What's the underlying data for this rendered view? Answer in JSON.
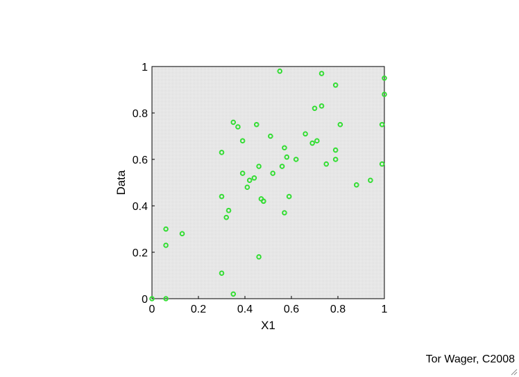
{
  "credit": "Tor Wager, C2008",
  "chart_data": {
    "type": "scatter",
    "title": "",
    "xlabel": "X1",
    "ylabel": "Data",
    "xlim": [
      0,
      1
    ],
    "ylim": [
      0,
      1
    ],
    "xticks": [
      "0",
      "0.2",
      "0.4",
      "0.6",
      "0.8",
      "1"
    ],
    "yticks": [
      "0",
      "0.2",
      "0.4",
      "0.6",
      "0.8",
      "1"
    ],
    "grid": false,
    "background": "#e8e8e8",
    "marker": "circle",
    "marker_color": "#33dd33",
    "series": [
      {
        "points": [
          [
            0.0,
            0.0
          ],
          [
            0.06,
            0.0
          ],
          [
            0.06,
            0.3
          ],
          [
            0.06,
            0.23
          ],
          [
            0.13,
            0.28
          ],
          [
            0.3,
            0.11
          ],
          [
            0.3,
            0.44
          ],
          [
            0.3,
            0.63
          ],
          [
            0.32,
            0.35
          ],
          [
            0.33,
            0.38
          ],
          [
            0.35,
            0.02
          ],
          [
            0.35,
            0.76
          ],
          [
            0.37,
            0.74
          ],
          [
            0.39,
            0.54
          ],
          [
            0.39,
            0.68
          ],
          [
            0.41,
            0.48
          ],
          [
            0.42,
            0.51
          ],
          [
            0.44,
            0.52
          ],
          [
            0.45,
            0.75
          ],
          [
            0.46,
            0.18
          ],
          [
            0.46,
            0.57
          ],
          [
            0.47,
            0.43
          ],
          [
            0.48,
            0.42
          ],
          [
            0.48,
            0.42
          ],
          [
            0.51,
            0.7
          ],
          [
            0.52,
            0.54
          ],
          [
            0.55,
            0.98
          ],
          [
            0.56,
            0.57
          ],
          [
            0.57,
            0.37
          ],
          [
            0.57,
            0.65
          ],
          [
            0.58,
            0.61
          ],
          [
            0.59,
            0.44
          ],
          [
            0.62,
            0.6
          ],
          [
            0.66,
            0.71
          ],
          [
            0.69,
            0.67
          ],
          [
            0.7,
            0.82
          ],
          [
            0.71,
            0.68
          ],
          [
            0.73,
            0.83
          ],
          [
            0.73,
            0.97
          ],
          [
            0.75,
            0.58
          ],
          [
            0.79,
            0.6
          ],
          [
            0.79,
            0.64
          ],
          [
            0.79,
            0.92
          ],
          [
            0.81,
            0.75
          ],
          [
            0.88,
            0.49
          ],
          [
            0.94,
            0.51
          ],
          [
            0.99,
            0.58
          ],
          [
            0.99,
            0.75
          ],
          [
            1.0,
            0.88
          ],
          [
            1.0,
            0.95
          ]
        ]
      }
    ]
  }
}
